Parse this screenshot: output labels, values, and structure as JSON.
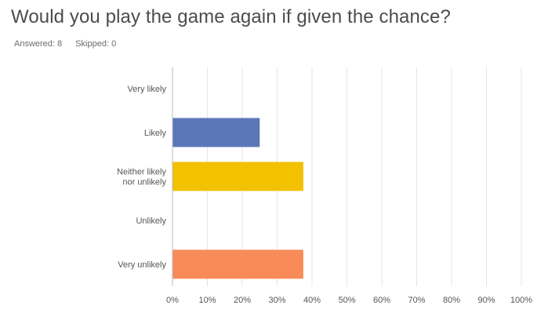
{
  "question": {
    "title": "Would you play the game again if given the chance?",
    "answered_label": "Answered: 8",
    "skipped_label": "Skipped: 0"
  },
  "chart_data": {
    "type": "bar",
    "orientation": "horizontal",
    "categories": [
      [
        "Very likely"
      ],
      [
        "Likely"
      ],
      [
        "Neither likely",
        "nor unlikely"
      ],
      [
        "Unlikely"
      ],
      [
        "Very unlikely"
      ]
    ],
    "values": [
      0,
      25,
      37.5,
      0,
      37.5
    ],
    "colors": [
      "#6f85bd",
      "#5b77b8",
      "#f2c100",
      "#e5a96b",
      "#f88b58"
    ],
    "xlim": [
      0,
      100
    ],
    "xticks": [
      0,
      10,
      20,
      30,
      40,
      50,
      60,
      70,
      80,
      90,
      100
    ],
    "xtick_labels": [
      "0%",
      "10%",
      "20%",
      "30%",
      "40%",
      "50%",
      "60%",
      "70%",
      "80%",
      "90%",
      "100%"
    ],
    "grid": true,
    "grid_color": "#e4e4e4",
    "axis_color": "#bdbdbd",
    "label_color": "#555555"
  }
}
